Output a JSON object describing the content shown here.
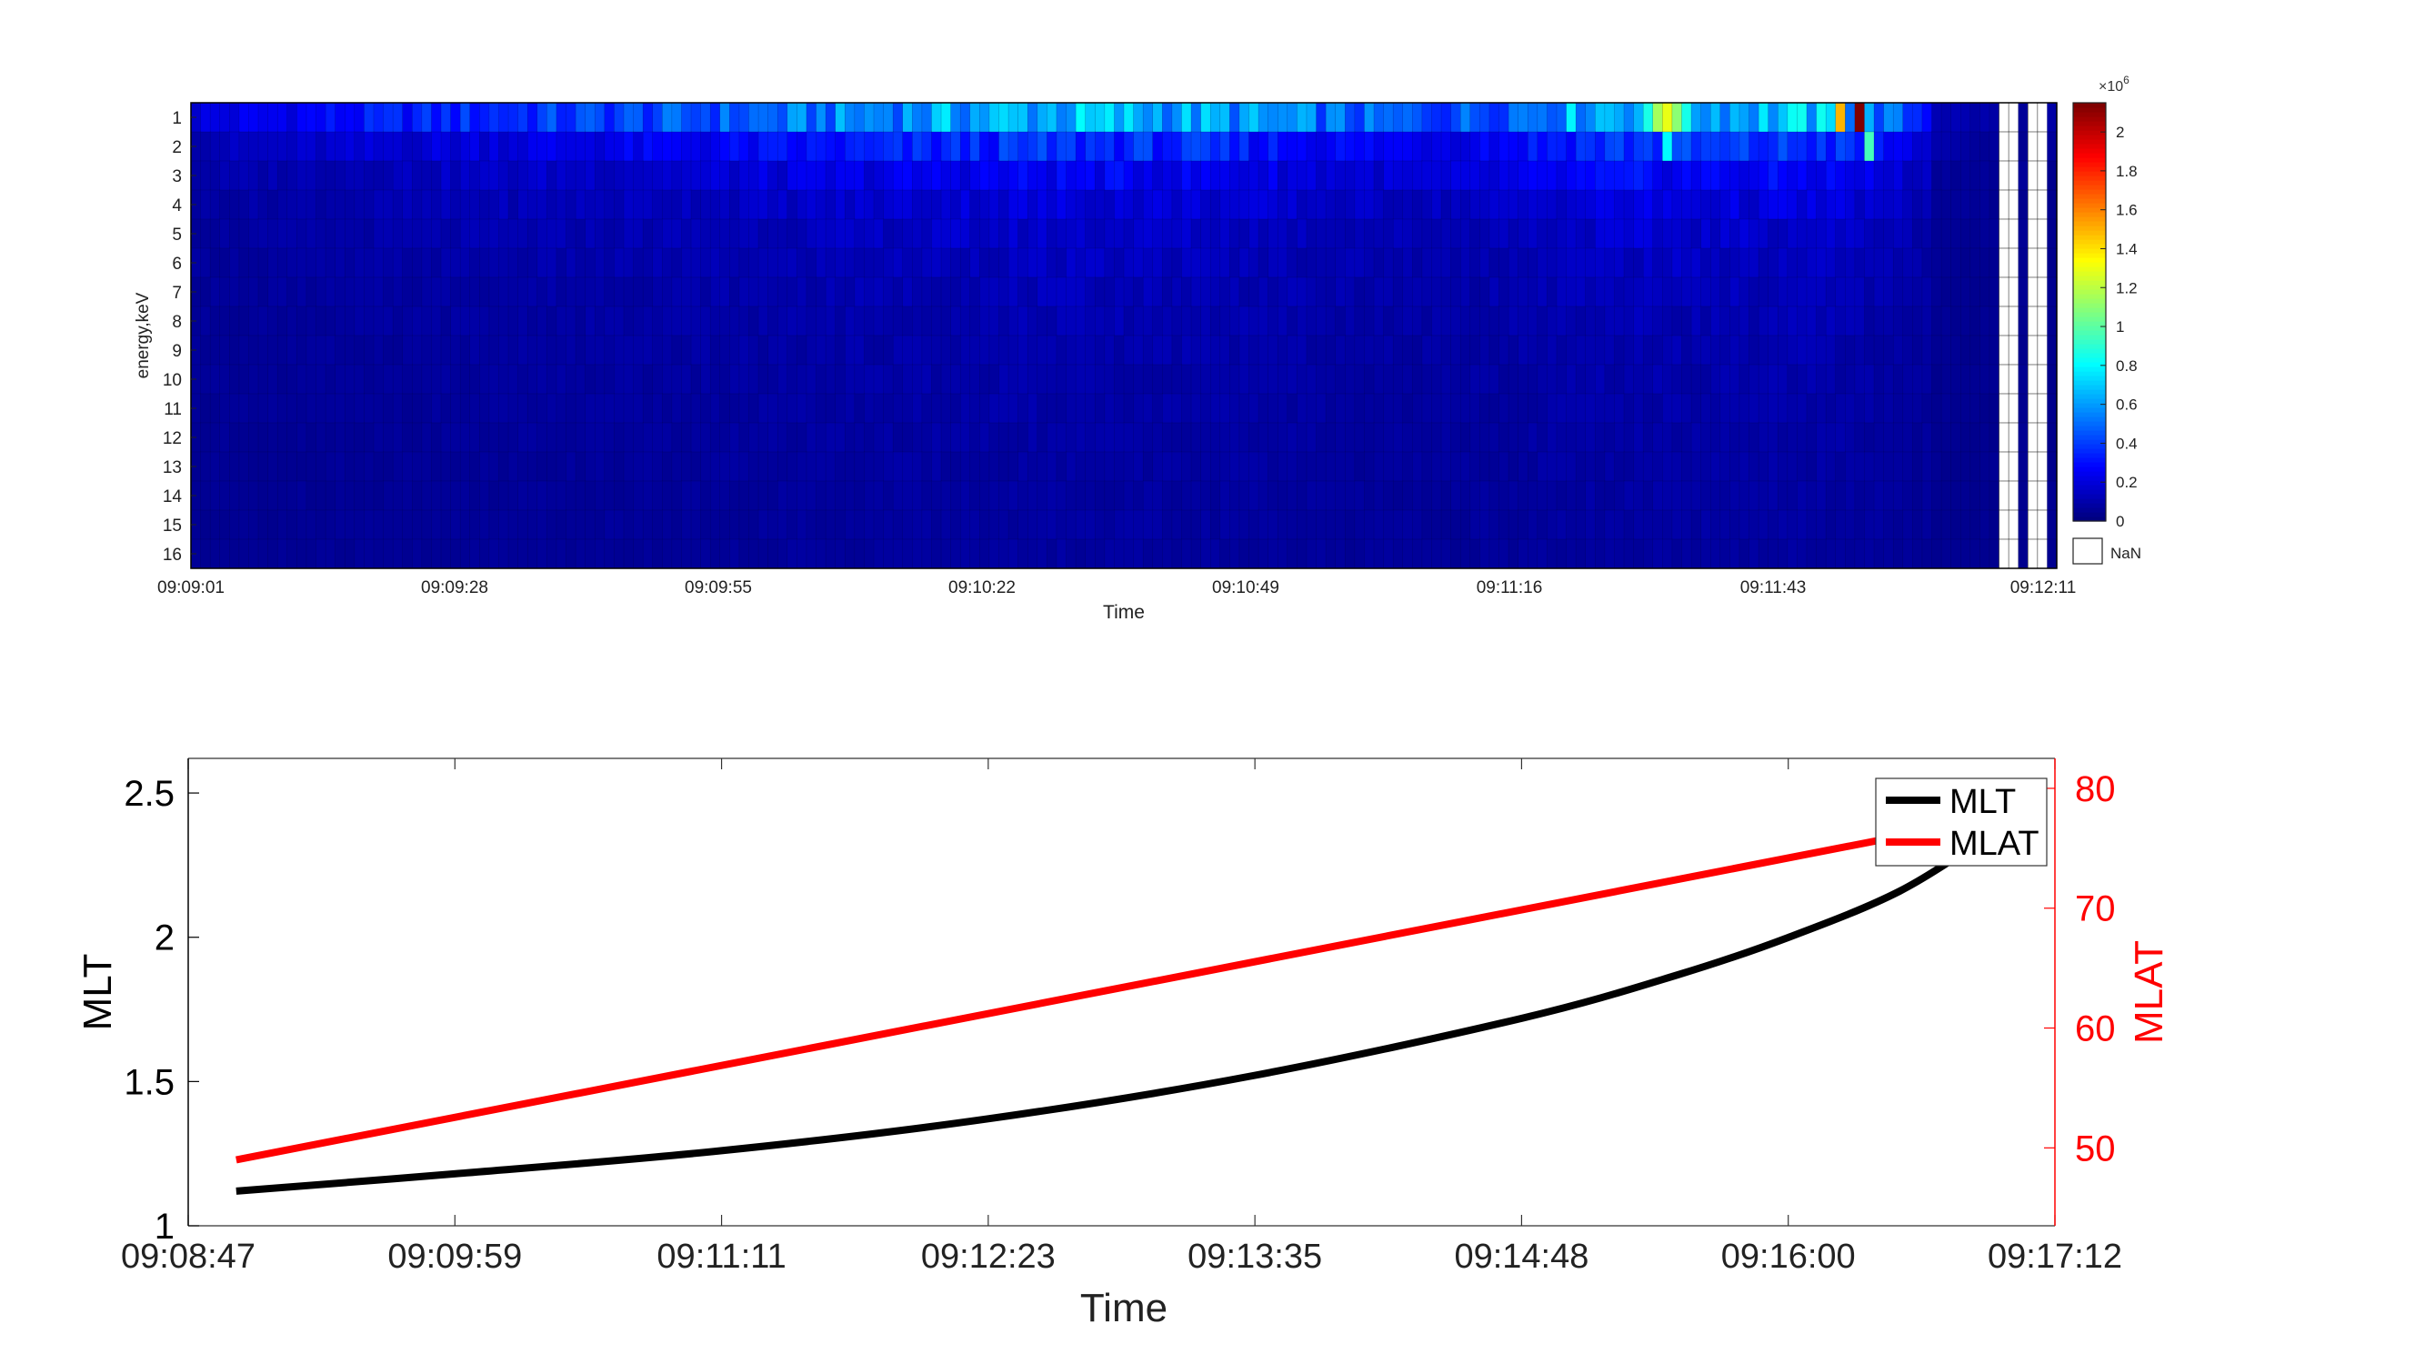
{
  "chart_data": [
    {
      "type": "heatmap",
      "title": "",
      "xlabel": "Time",
      "ylabel": "energy,keV",
      "x_tick_labels": [
        "09:09:01",
        "09:09:28",
        "09:09:55",
        "09:10:22",
        "09:10:49",
        "09:11:16",
        "09:11:43",
        "09:12:11"
      ],
      "y_categories": [
        "1",
        "2",
        "3",
        "4",
        "5",
        "6",
        "7",
        "8",
        "9",
        "10",
        "11",
        "12",
        "13",
        "14",
        "15",
        "16"
      ],
      "time_bins": 194,
      "nan_bins": [
        188,
        189,
        191,
        192
      ],
      "colormap": "jet",
      "colorbar": {
        "exponent_label": "×10",
        "exponent_power": "6",
        "range": [
          0,
          2.15
        ],
        "ticks": [
          "0",
          "0.2",
          "0.4",
          "0.6",
          "0.8",
          "1",
          "1.2",
          "1.4",
          "1.6",
          "1.8",
          "2"
        ],
        "nan_label": "NaN"
      },
      "peaks": [
        {
          "row": 1,
          "bin": 173,
          "value": 2.15
        },
        {
          "row": 1,
          "bin": 171,
          "value": 1.5
        },
        {
          "row": 1,
          "bin": 153,
          "value": 1.3
        },
        {
          "row": 1,
          "bin": 152,
          "value": 1.15
        },
        {
          "row": 1,
          "bin": 154,
          "value": 1.1
        },
        {
          "row": 2,
          "bin": 174,
          "value": 0.95
        },
        {
          "row": 2,
          "bin": 153,
          "value": 0.8
        }
      ]
    },
    {
      "type": "line",
      "title": "",
      "xlabel": "Time",
      "x_tick_labels": [
        "09:08:47",
        "09:09:59",
        "09:11:11",
        "09:12:23",
        "09:13:35",
        "09:14:48",
        "09:16:00",
        "09:17:12"
      ],
      "x_range": [
        "09:08:47",
        "09:17:12"
      ],
      "left_axis": {
        "label": "MLT",
        "ylim": [
          1,
          2.62
        ],
        "ticks": [
          "1",
          "1.5",
          "2",
          "2.5"
        ],
        "color": "#000000"
      },
      "right_axis": {
        "label": "MLAT",
        "ylim": [
          43.5,
          82.5
        ],
        "ticks": [
          "50",
          "60",
          "70",
          "80"
        ],
        "color": "#ff0000"
      },
      "legend": {
        "placement": "top-right",
        "entries": [
          "MLT",
          "MLAT"
        ]
      },
      "series": [
        {
          "name": "MLT",
          "axis": "left",
          "color": "#000000",
          "x": [
            "09:09:00",
            "09:09:59",
            "09:11:11",
            "09:12:23",
            "09:13:35",
            "09:14:48",
            "09:15:30",
            "09:16:00",
            "09:16:30",
            "09:16:55"
          ],
          "y": [
            1.12,
            1.18,
            1.26,
            1.37,
            1.52,
            1.72,
            1.87,
            2.0,
            2.16,
            2.36
          ]
        },
        {
          "name": "MLAT",
          "axis": "right",
          "color": "#ff0000",
          "x": [
            "09:09:00",
            "09:16:55"
          ],
          "y": [
            49.0,
            77.5
          ]
        }
      ]
    }
  ]
}
